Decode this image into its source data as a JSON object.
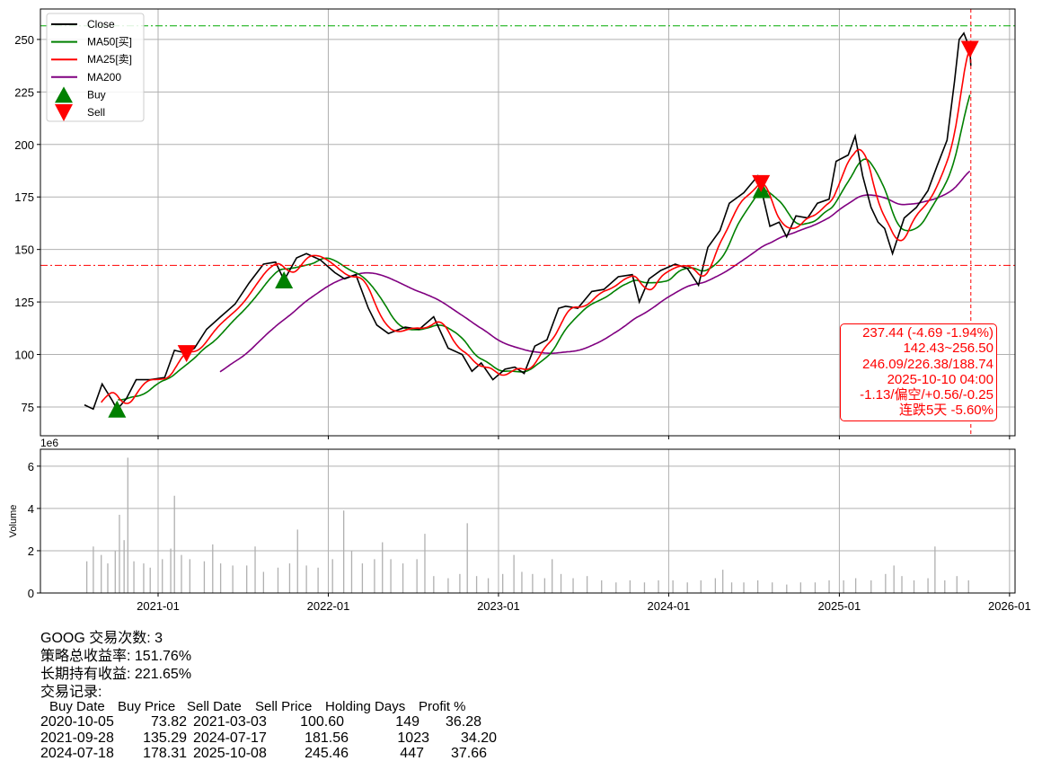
{
  "chart_data": [
    {
      "type": "line",
      "panel": "price",
      "ylim": [
        61.3,
        264.5
      ],
      "yticks": [
        75,
        100,
        125,
        150,
        175,
        200,
        225,
        250
      ],
      "grid": true,
      "legend": {
        "position": "top-left",
        "entries": [
          "Close",
          "MA50[买]",
          "MA25[卖]",
          "MA200",
          "Buy",
          "Sell"
        ]
      },
      "colors": {
        "close": "#000000",
        "ma50": "#008000",
        "ma25": "#ff0000",
        "ma200": "#800080",
        "buy": "#008000",
        "sell": "#ff0000"
      },
      "close": {
        "name": "Close",
        "x": [
          "2020-07-27",
          "2020-08-15",
          "2020-09-03",
          "2020-09-25",
          "2020-10-05",
          "2020-10-25",
          "2020-11-15",
          "2020-12-15",
          "2021-01-15",
          "2021-02-05",
          "2021-03-03",
          "2021-03-20",
          "2021-04-15",
          "2021-05-15",
          "2021-06-15",
          "2021-07-15",
          "2021-08-15",
          "2021-09-10",
          "2021-09-28",
          "2021-10-25",
          "2021-11-15",
          "2021-12-15",
          "2022-01-15",
          "2022-02-05",
          "2022-03-01",
          "2022-03-28",
          "2022-04-15",
          "2022-05-10",
          "2022-06-15",
          "2022-07-15",
          "2022-08-15",
          "2022-09-15",
          "2022-10-15",
          "2022-11-05",
          "2022-11-25",
          "2022-12-20",
          "2023-01-15",
          "2023-02-05",
          "2023-02-25",
          "2023-03-20",
          "2023-04-15",
          "2023-05-10",
          "2023-05-25",
          "2023-06-20",
          "2023-07-20",
          "2023-08-15",
          "2023-09-15",
          "2023-10-15",
          "2023-10-30",
          "2023-11-20",
          "2023-12-15",
          "2024-01-15",
          "2024-02-10",
          "2024-03-05",
          "2024-03-25",
          "2024-04-20",
          "2024-05-10",
          "2024-06-10",
          "2024-07-10",
          "2024-07-18",
          "2024-08-05",
          "2024-08-25",
          "2024-09-10",
          "2024-09-30",
          "2024-10-25",
          "2024-11-15",
          "2024-12-10",
          "2024-12-25",
          "2025-01-20",
          "2025-02-04",
          "2025-02-20",
          "2025-03-10",
          "2025-03-25",
          "2025-04-08",
          "2025-04-25",
          "2025-05-20",
          "2025-06-15",
          "2025-07-10",
          "2025-07-30",
          "2025-08-20",
          "2025-09-05",
          "2025-09-15",
          "2025-09-25",
          "2025-10-08",
          "2025-10-10"
        ],
        "y": [
          76,
          74,
          86,
          78,
          73.8,
          79,
          88,
          88,
          89,
          102,
          100.6,
          103,
          112,
          118,
          124,
          134,
          143,
          144,
          135.3,
          146,
          148,
          145,
          139,
          136,
          138,
          122,
          114,
          110,
          113,
          112,
          118,
          103,
          100,
          92,
          96,
          88,
          93,
          94,
          91,
          104,
          107,
          122,
          123,
          122,
          130,
          131,
          137,
          138,
          125,
          136,
          140,
          143,
          141,
          133,
          151,
          159,
          172,
          177,
          185,
          178.3,
          161,
          163,
          156,
          166,
          165,
          172,
          174,
          192,
          195,
          204,
          185,
          170,
          163,
          160,
          148,
          165,
          170,
          178,
          190,
          202,
          230,
          250,
          253,
          245.5,
          237.44
        ]
      },
      "markers": {
        "buy": [
          {
            "date": "2020-10-05",
            "price": 73.82
          },
          {
            "date": "2021-09-28",
            "price": 135.29
          },
          {
            "date": "2024-07-18",
            "price": 178.31
          }
        ],
        "sell": [
          {
            "date": "2021-03-03",
            "price": 100.6
          },
          {
            "date": "2024-07-17",
            "price": 181.56
          },
          {
            "date": "2025-10-08",
            "price": 245.46
          }
        ]
      },
      "hlines": [
        {
          "value": 256.5,
          "color": "#00aa00",
          "style": "dashdot"
        },
        {
          "value": 142.43,
          "color": "#ff0000",
          "style": "dashdot"
        }
      ],
      "vline": {
        "date": "2025-10-10",
        "color": "#ff0000",
        "style": "dashed"
      },
      "annotation": [
        "237.44 (-4.69 -1.94%)",
        "142.43~256.50",
        "246.09/226.38/188.74",
        "2025-10-10 04:00",
        "-1.13/偏空/+0.56/-0.25",
        "连跌5天 -5.60%"
      ]
    },
    {
      "type": "bar",
      "panel": "volume",
      "ylabel": "Volume",
      "offset_label": "1e6",
      "ylim": [
        0,
        6.8
      ],
      "yticks": [
        0,
        2,
        4,
        6
      ],
      "grid": true,
      "color": "#b0b0b0",
      "xtick_labels": [
        "2021-01",
        "2022-01",
        "2023-01",
        "2024-01",
        "2025-01",
        "2026-01"
      ],
      "xticks": [
        "2021-01-01",
        "2022-01-01",
        "2023-01-01",
        "2024-01-01",
        "2025-01-01",
        "2026-01-01"
      ],
      "x": [
        "2020-08-01",
        "2020-08-15",
        "2020-09-01",
        "2020-09-15",
        "2020-10-01",
        "2020-10-10",
        "2020-10-20",
        "2020-10-28",
        "2020-11-10",
        "2020-12-01",
        "2020-12-15",
        "2021-01-10",
        "2021-01-28",
        "2021-02-05",
        "2021-02-20",
        "2021-03-10",
        "2021-04-10",
        "2021-04-28",
        "2021-05-15",
        "2021-06-10",
        "2021-07-10",
        "2021-07-28",
        "2021-08-15",
        "2021-09-15",
        "2021-10-10",
        "2021-10-27",
        "2021-11-15",
        "2021-12-10",
        "2022-01-10",
        "2022-02-03",
        "2022-02-20",
        "2022-03-15",
        "2022-04-10",
        "2022-04-27",
        "2022-05-15",
        "2022-06-10",
        "2022-07-10",
        "2022-07-27",
        "2022-08-15",
        "2022-09-15",
        "2022-10-10",
        "2022-10-26",
        "2022-11-15",
        "2022-12-10",
        "2023-01-10",
        "2023-02-03",
        "2023-02-20",
        "2023-03-15",
        "2023-04-10",
        "2023-04-26",
        "2023-05-15",
        "2023-06-10",
        "2023-07-10",
        "2023-08-10",
        "2023-09-10",
        "2023-10-10",
        "2023-11-10",
        "2023-12-10",
        "2024-01-10",
        "2024-02-10",
        "2024-03-10",
        "2024-04-10",
        "2024-04-26",
        "2024-05-15",
        "2024-06-10",
        "2024-07-10",
        "2024-08-10",
        "2024-09-10",
        "2024-10-10",
        "2024-11-10",
        "2024-12-10",
        "2025-01-10",
        "2025-02-05",
        "2025-03-10",
        "2025-04-10",
        "2025-04-28",
        "2025-05-15",
        "2025-06-10",
        "2025-07-10",
        "2025-07-25",
        "2025-08-15",
        "2025-09-10",
        "2025-10-05"
      ],
      "values": [
        1.5,
        2.2,
        1.8,
        1.4,
        2.0,
        3.7,
        2.5,
        6.4,
        1.5,
        1.4,
        1.2,
        1.6,
        2.1,
        4.6,
        1.8,
        1.6,
        1.5,
        2.3,
        1.4,
        1.3,
        1.3,
        2.2,
        1.0,
        1.2,
        1.4,
        3.0,
        1.3,
        1.2,
        1.6,
        3.9,
        2.0,
        1.4,
        1.6,
        2.4,
        1.6,
        1.4,
        1.6,
        2.8,
        0.8,
        0.7,
        0.9,
        3.3,
        0.8,
        0.7,
        0.9,
        1.8,
        1.0,
        0.9,
        0.7,
        1.6,
        0.9,
        0.7,
        0.8,
        0.6,
        0.5,
        0.6,
        0.5,
        0.6,
        0.6,
        0.5,
        0.6,
        0.7,
        1.1,
        0.5,
        0.5,
        0.6,
        0.5,
        0.4,
        0.5,
        0.5,
        0.6,
        0.6,
        0.7,
        0.6,
        0.9,
        1.3,
        0.8,
        0.6,
        0.7,
        2.2,
        0.6,
        0.8,
        0.6
      ]
    }
  ],
  "summary": {
    "trades": "GOOG 交易次数: 3",
    "strategy_return": "策略总收益率: 151.76%",
    "buy_hold_return": "长期持有收益: 221.65%",
    "records_title": "交易记录:"
  },
  "trades_table": {
    "headers": [
      "Buy Date",
      "Buy Price",
      "Sell Date",
      "Sell Price",
      "Holding Days",
      "Profit %"
    ],
    "rows": [
      [
        "2020-10-05",
        "73.82",
        "2021-03-03",
        "100.60",
        "149",
        "36.28"
      ],
      [
        "2021-09-28",
        "135.29",
        "2024-07-17",
        "181.56",
        "1023",
        "34.20"
      ],
      [
        "2024-07-18",
        "178.31",
        "2025-10-08",
        "245.46",
        "447",
        "37.66"
      ]
    ]
  }
}
